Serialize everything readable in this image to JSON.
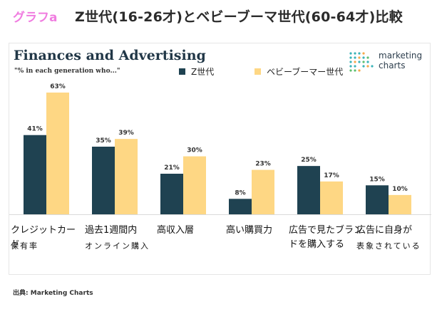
{
  "header": {
    "tag": "グラフa",
    "title": "Z世代(16-26才)とベビーブーマ世代(60-64才)比較"
  },
  "logo": {
    "line1": "marketing",
    "line2": "charts"
  },
  "source": "出典: Marketing Charts",
  "colors": {
    "genz": "#1f4251",
    "boomer": "#fed784",
    "tag": "#f07de0"
  },
  "chart_data": {
    "type": "bar",
    "title": "Finances and Advertising",
    "subtitle": "\"% in each generation who...\"",
    "categories": [
      {
        "line1": "クレジットカード",
        "line2": "保有率"
      },
      {
        "line1": "過去1週間内",
        "line2": "オンライン購入"
      },
      {
        "line1": "高収入層",
        "line2": ""
      },
      {
        "line1": "高い購買力",
        "line2": ""
      },
      {
        "line1": "広告で見たブランドを購入する",
        "line2": ""
      },
      {
        "line1": "広告に自身が",
        "line2": "表象されている"
      }
    ],
    "series": [
      {
        "name": "Z世代",
        "color": "#1f4251",
        "values": [
          41,
          35,
          21,
          8,
          25,
          15
        ]
      },
      {
        "name": "ベビーブーマー世代",
        "color": "#fed784",
        "values": [
          63,
          39,
          30,
          23,
          17,
          10
        ]
      }
    ],
    "value_suffix": "%",
    "ylim": [
      0,
      70
    ],
    "grid": false,
    "legend": "top"
  }
}
